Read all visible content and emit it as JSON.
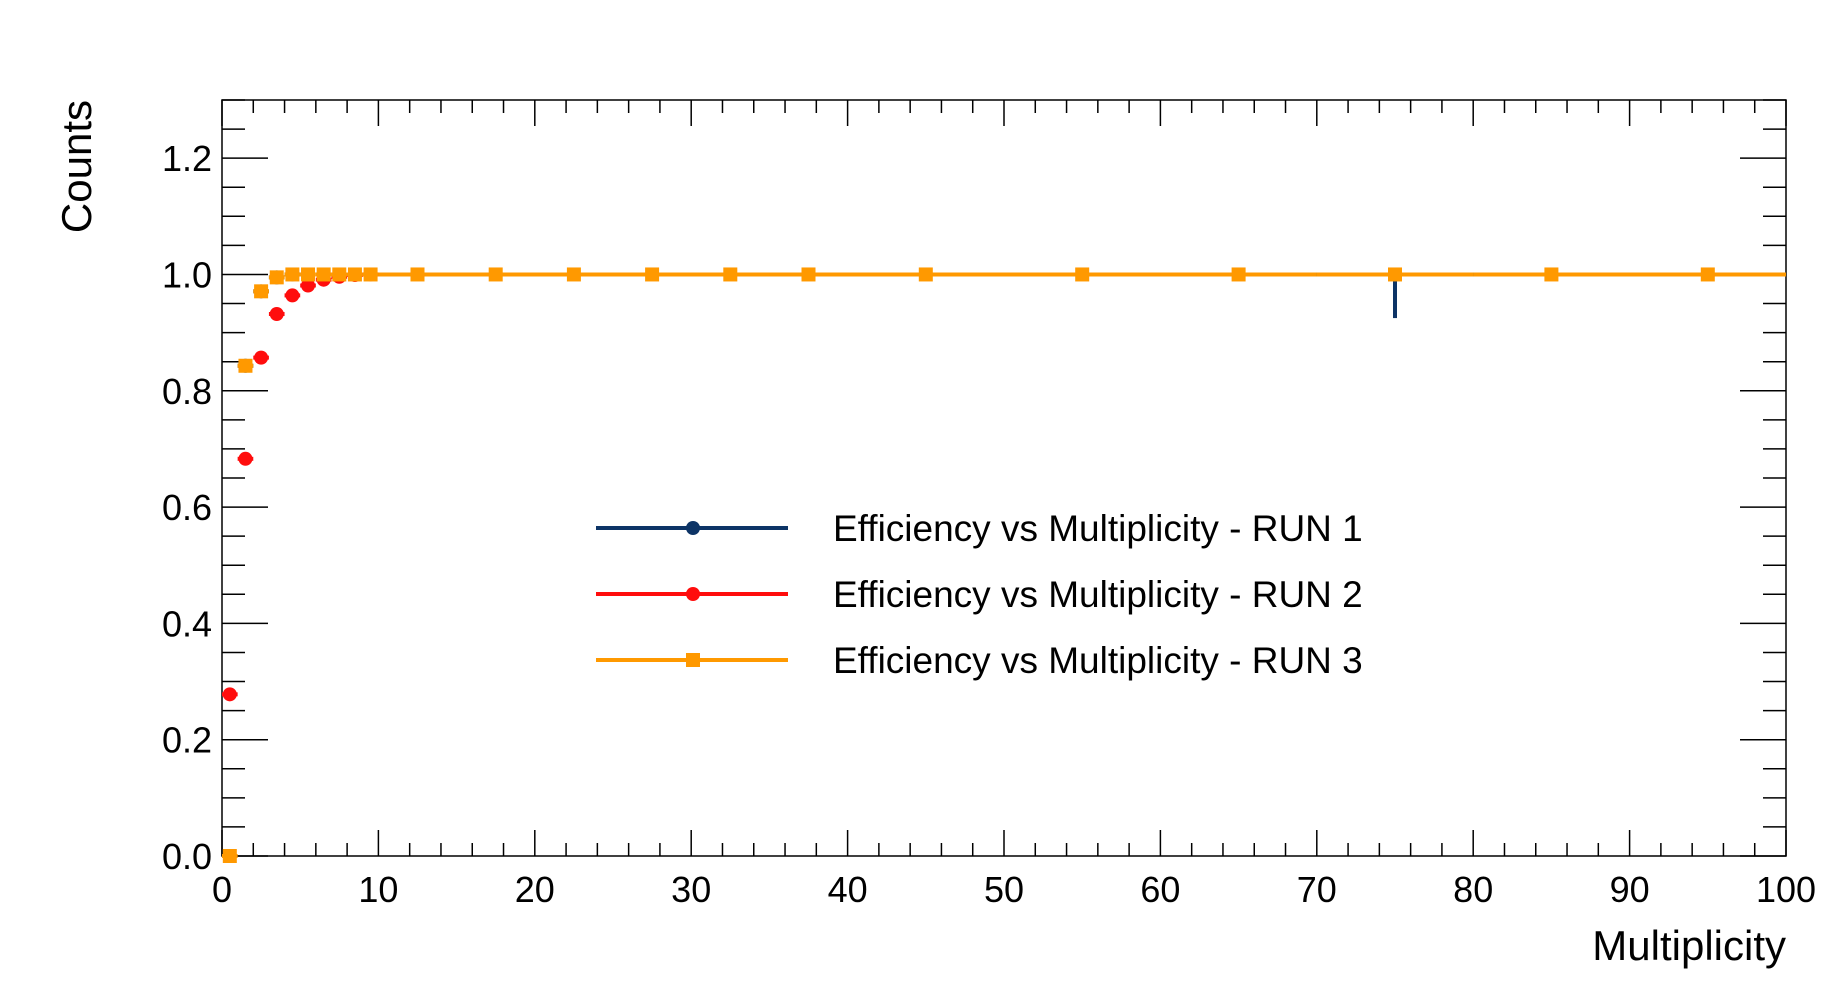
{
  "chart_data": {
    "type": "scatter",
    "title": "",
    "xlabel": "Multiplicity",
    "ylabel": "Counts",
    "xlim": [
      0,
      100
    ],
    "ylim": [
      0,
      1.3
    ],
    "x_ticks": [
      0,
      10,
      20,
      30,
      40,
      50,
      60,
      70,
      80,
      90,
      100
    ],
    "x_tick_labels": [
      "0",
      "10",
      "20",
      "30",
      "40",
      "50",
      "60",
      "70",
      "80",
      "90",
      "100"
    ],
    "y_ticks": [
      0,
      0.2,
      0.4,
      0.6,
      0.8,
      1.0,
      1.2
    ],
    "y_tick_labels": [
      "0.0",
      "0.2",
      "0.4",
      "0.6",
      "0.8",
      "1.0",
      "1.2"
    ],
    "grid": false,
    "legend_position": "center",
    "series": [
      {
        "name": "Efficiency vs Multiplicity - RUN 1",
        "color": "#0d3466",
        "marker": "circle",
        "points": [
          {
            "x": 1.5,
            "y": 0.843
          },
          {
            "x": 2.5,
            "y": 0.971
          },
          {
            "x": 3.5,
            "y": 0.995
          },
          {
            "x": 4.5,
            "y": 1.0
          },
          {
            "x": 75,
            "y": 1.0,
            "err_lo": 0.075
          }
        ]
      },
      {
        "name": "Efficiency vs Multiplicity - RUN 2",
        "color": "#ff0d0d",
        "marker": "circle",
        "points": [
          {
            "x": 0.5,
            "y": 0.278
          },
          {
            "x": 1.5,
            "y": 0.683
          },
          {
            "x": 2.5,
            "y": 0.857
          },
          {
            "x": 3.5,
            "y": 0.932
          },
          {
            "x": 4.5,
            "y": 0.964
          },
          {
            "x": 5.5,
            "y": 0.981
          },
          {
            "x": 6.5,
            "y": 0.991
          },
          {
            "x": 7.5,
            "y": 0.996
          },
          {
            "x": 8.5,
            "y": 0.999
          },
          {
            "x": 9.5,
            "y": 1.0
          }
        ]
      },
      {
        "name": "Efficiency vs Multiplicity - RUN 3",
        "color": "#ff9900",
        "marker": "square",
        "points": [
          {
            "x": 0.5,
            "y": 0.0
          },
          {
            "x": 1.5,
            "y": 0.843
          },
          {
            "x": 2.5,
            "y": 0.971
          },
          {
            "x": 3.5,
            "y": 0.995
          },
          {
            "x": 4.5,
            "y": 1.0
          },
          {
            "x": 5.5,
            "y": 1.0
          },
          {
            "x": 6.5,
            "y": 1.0
          },
          {
            "x": 7.5,
            "y": 1.0
          },
          {
            "x": 8.5,
            "y": 1.0
          },
          {
            "x": 9.5,
            "y": 1.0
          },
          {
            "x": 12.5,
            "y": 1.0
          },
          {
            "x": 17.5,
            "y": 1.0
          },
          {
            "x": 22.5,
            "y": 1.0
          },
          {
            "x": 27.5,
            "y": 1.0
          },
          {
            "x": 32.5,
            "y": 1.0
          },
          {
            "x": 37.5,
            "y": 1.0
          },
          {
            "x": 45,
            "y": 1.0
          },
          {
            "x": 55,
            "y": 1.0
          },
          {
            "x": 65,
            "y": 1.0
          },
          {
            "x": 75,
            "y": 1.0
          },
          {
            "x": 85,
            "y": 1.0
          },
          {
            "x": 95,
            "y": 1.0
          }
        ],
        "line_at": 1.0
      }
    ]
  }
}
